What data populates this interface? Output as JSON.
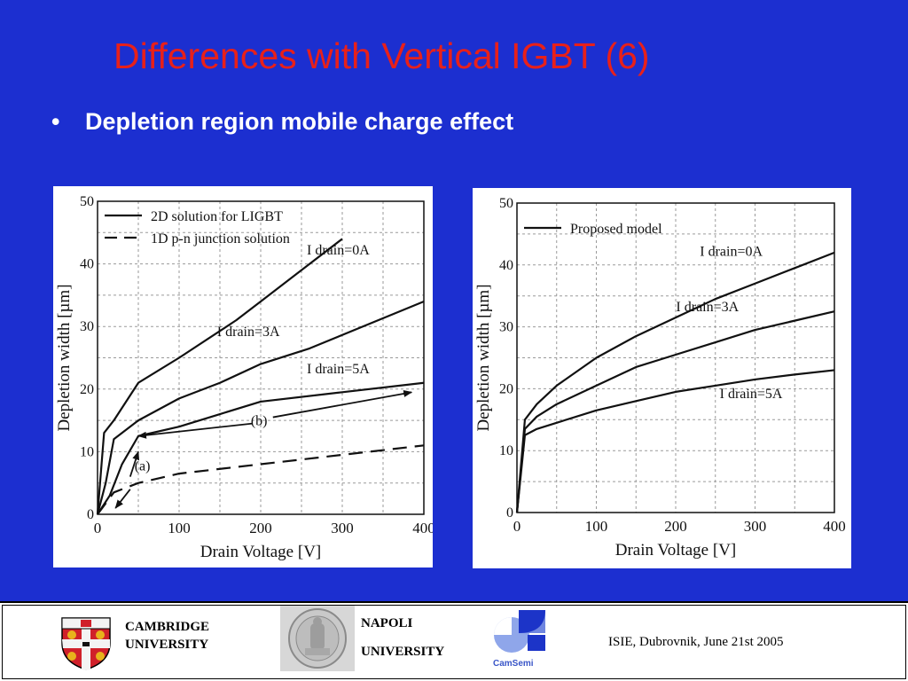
{
  "slide": {
    "title": "Differences with Vertical IGBT (6)",
    "bullet_symbol": "•",
    "bullet_text": "Depletion region mobile charge effect"
  },
  "footer": {
    "left_line1": "CAMBRIDGE",
    "left_line2": "UNIVERSITY",
    "mid_line1": "NAPOLI",
    "mid_line2": "UNIVERSITY",
    "camsemi_word": "CamSemi",
    "conference": "ISIE,  Dubrovnik, June 21st 2005"
  },
  "chart_data": [
    {
      "type": "line",
      "xlabel": "Drain Voltage [V]",
      "ylabel": "Depletion width [µm]",
      "xlim": [
        0,
        400
      ],
      "ylim": [
        0,
        50
      ],
      "xticks": [
        0,
        100,
        200,
        300,
        400
      ],
      "yticks": [
        0,
        10,
        20,
        30,
        40,
        50
      ],
      "grid": true,
      "legend_position": "top-left",
      "legend": [
        {
          "label": "2D solution for LIGBT",
          "style": "solid"
        },
        {
          "label": "1D p-n junction solution",
          "style": "dashed"
        }
      ],
      "series": [
        {
          "name": "I drain=0A",
          "style": "solid",
          "x": [
            0,
            8,
            20,
            50,
            100,
            170,
            200,
            250,
            300
          ],
          "y": [
            0,
            13,
            15,
            21,
            25,
            31,
            34,
            39,
            44
          ]
        },
        {
          "name": "I drain=3A",
          "style": "solid",
          "x": [
            0,
            10,
            20,
            50,
            100,
            150,
            200,
            260,
            400
          ],
          "y": [
            0,
            5,
            12,
            15,
            18.5,
            21,
            24,
            26.5,
            34
          ]
        },
        {
          "name": "I drain=5A",
          "style": "solid",
          "x": [
            0,
            15,
            30,
            50,
            100,
            150,
            200,
            300,
            400
          ],
          "y": [
            0,
            3,
            8,
            12.5,
            14,
            16,
            18,
            19.5,
            21
          ]
        },
        {
          "style": "dashed",
          "x": [
            0,
            20,
            50,
            100,
            200,
            300,
            400
          ],
          "y": [
            0,
            3.5,
            5,
            6.5,
            8,
            9.5,
            11
          ]
        }
      ],
      "annotations": [
        {
          "text": "I drain=0A",
          "x": 295,
          "y": 41.5
        },
        {
          "text": "I drain=3A",
          "x": 185,
          "y": 28.5
        },
        {
          "text": "I drain=5A",
          "x": 295,
          "y": 22.5
        },
        {
          "text": "(b)",
          "x": 198,
          "y": 14.2
        },
        {
          "text": "(a)",
          "x": 55,
          "y": 7
        }
      ],
      "arrows": [
        {
          "from": [
            40,
            6
          ],
          "to": [
            50,
            10
          ]
        },
        {
          "from": [
            40,
            4
          ],
          "to": [
            22,
            1
          ]
        },
        {
          "from": [
            190,
            14.5
          ],
          "to": [
            50,
            12.5
          ]
        },
        {
          "from": [
            215,
            15.5
          ],
          "to": [
            385,
            19.5
          ]
        }
      ]
    },
    {
      "type": "line",
      "xlabel": "Drain Voltage [V]",
      "ylabel": "Depletion width [µm]",
      "xlim": [
        0,
        400
      ],
      "ylim": [
        0,
        50
      ],
      "xticks": [
        0,
        100,
        200,
        300,
        400
      ],
      "yticks": [
        0,
        10,
        20,
        30,
        40,
        50
      ],
      "grid": true,
      "legend_position": "top-left",
      "legend": [
        {
          "label": "Proposed model",
          "style": "solid"
        }
      ],
      "series": [
        {
          "name": "I drain=0A",
          "style": "solid",
          "x": [
            0,
            10,
            25,
            50,
            100,
            150,
            200,
            250,
            300,
            350,
            400
          ],
          "y": [
            0,
            15,
            17.5,
            20.5,
            25,
            28.5,
            31.5,
            34.5,
            37,
            39.5,
            42
          ]
        },
        {
          "name": "I drain=3A",
          "style": "solid",
          "x": [
            0,
            10,
            25,
            50,
            100,
            150,
            200,
            250,
            300,
            350,
            400
          ],
          "y": [
            0,
            13.5,
            15.5,
            17.5,
            20.5,
            23.5,
            25.5,
            27.5,
            29.5,
            31,
            32.5
          ]
        },
        {
          "name": "I drain=5A",
          "style": "solid",
          "x": [
            0,
            10,
            25,
            50,
            100,
            150,
            200,
            250,
            300,
            350,
            400
          ],
          "y": [
            0,
            12.5,
            13.5,
            14.5,
            16.5,
            18,
            19.5,
            20.5,
            21.5,
            22.3,
            23
          ]
        }
      ],
      "annotations": [
        {
          "text": "I drain=0A",
          "x": 270,
          "y": 41.5
        },
        {
          "text": "I drain=3A",
          "x": 240,
          "y": 32.5
        },
        {
          "text": "I drain=5A",
          "x": 295,
          "y": 18.5
        }
      ],
      "arrows": []
    }
  ]
}
